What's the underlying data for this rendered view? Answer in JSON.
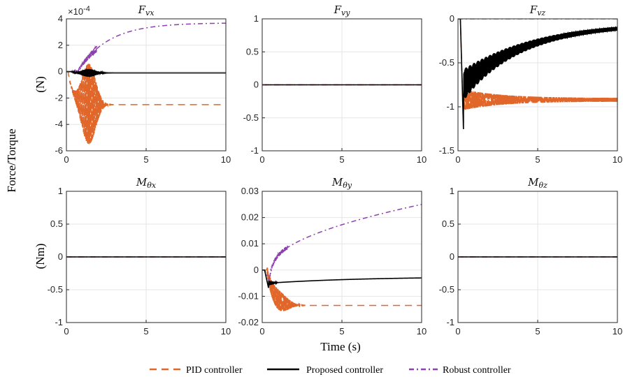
{
  "colors": {
    "pid": "#E0662A",
    "proposed": "#000000",
    "robust": "#8E3FB0",
    "grid": "#E6E6E6",
    "axis": "#262626"
  },
  "figure": {
    "ylabel": "Force/Torque",
    "xlabel": "Time (s)",
    "row_labels": [
      "(N)",
      "(Nm)"
    ]
  },
  "legend": [
    {
      "name": "PID controller",
      "style": "dashed",
      "color_key": "pid"
    },
    {
      "name": "Proposed controller",
      "style": "solid",
      "color_key": "proposed"
    },
    {
      "name": "Robust controller",
      "style": "dashdot",
      "color_key": "robust"
    }
  ],
  "chart_data": [
    {
      "type": "line",
      "title_main": "F",
      "title_sub": "vx",
      "exponent": "×10-4",
      "xlim": [
        0,
        10
      ],
      "ylim": [
        -6,
        4
      ],
      "xticks": [
        "0",
        "5",
        "10"
      ],
      "yticks": [
        "-6",
        "-4",
        "-2",
        "0",
        "2",
        "4"
      ],
      "ytick_values": [
        -6,
        -4,
        -2,
        0,
        2,
        4
      ],
      "series": [
        {
          "name": "PID controller",
          "model": {
            "kind": "osc",
            "final": -2.5,
            "amp": 3.2,
            "freq": 28,
            "start": 0.1,
            "peak": 1.4,
            "width": 0.6,
            "decay": 3
          }
        },
        {
          "name": "Proposed controller",
          "model": {
            "kind": "osc",
            "final": -0.1,
            "amp": 0.3,
            "freq": 32,
            "start": 0.3,
            "peak": 1.4,
            "width": 0.6,
            "decay": 4
          }
        },
        {
          "name": "Robust controller",
          "model": {
            "kind": "rise",
            "final": 3.7,
            "tau": 1.9,
            "start": 0.3,
            "osc": 0.25,
            "freq": 26,
            "osc_end": 1.9
          }
        }
      ]
    },
    {
      "type": "line",
      "title_main": "F",
      "title_sub": "vy",
      "exponent": "",
      "xlim": [
        0,
        10
      ],
      "ylim": [
        -1,
        1
      ],
      "xticks": [
        "0",
        "5",
        "10"
      ],
      "yticks": [
        "-1",
        "-0.5",
        "0",
        "0.5",
        "1"
      ],
      "ytick_values": [
        -1,
        -0.5,
        0,
        0.5,
        1
      ],
      "series": [
        {
          "name": "PID controller",
          "model": {
            "kind": "const",
            "final": 0
          }
        },
        {
          "name": "Proposed controller",
          "model": {
            "kind": "const",
            "final": 0
          }
        },
        {
          "name": "Robust controller",
          "model": {
            "kind": "const",
            "final": 0
          }
        }
      ]
    },
    {
      "type": "line",
      "title_main": "F",
      "title_sub": "vz",
      "exponent": "",
      "xlim": [
        0,
        10
      ],
      "ylim": [
        -1.5,
        0
      ],
      "xticks": [
        "0",
        "5",
        "10"
      ],
      "yticks": [
        "-1.5",
        "-1",
        "-0.5",
        "0"
      ],
      "ytick_values": [
        -1.5,
        -1,
        -0.5,
        0
      ],
      "series": [
        {
          "name": "PID controller",
          "model": {
            "kind": "band",
            "final": -0.92,
            "amp0": 0.12,
            "amp1": 0.02,
            "freq": 30,
            "start": 0.15,
            "dip": -1.3,
            "dip_t": 0.35
          }
        },
        {
          "name": "Proposed controller",
          "model": {
            "kind": "band",
            "final": -0.05,
            "amp0": 0.18,
            "amp1": 0.02,
            "freq": 36,
            "start": 0.15,
            "dip": -1.3,
            "dip_t": 0.35,
            "decay_to_final": true,
            "tau": 4.0,
            "mid": -0.75
          }
        },
        {
          "name": "Robust controller",
          "model": {
            "kind": "const",
            "final": 0
          }
        }
      ]
    },
    {
      "type": "line",
      "title_main": "M",
      "title_sub": "θx",
      "exponent": "",
      "xlim": [
        0,
        10
      ],
      "ylim": [
        -1,
        1
      ],
      "xticks": [
        "0",
        "5",
        "10"
      ],
      "yticks": [
        "-1",
        "-0.5",
        "0",
        "0.5",
        "1"
      ],
      "ytick_values": [
        -1,
        -0.5,
        0,
        0.5,
        1
      ],
      "series": [
        {
          "name": "PID controller",
          "model": {
            "kind": "const",
            "final": 0
          }
        },
        {
          "name": "Proposed controller",
          "model": {
            "kind": "const",
            "final": 0
          }
        },
        {
          "name": "Robust controller",
          "model": {
            "kind": "const",
            "final": 0
          }
        }
      ]
    },
    {
      "type": "line",
      "title_main": "M",
      "title_sub": "θy",
      "exponent": "",
      "xlim": [
        0,
        10
      ],
      "ylim": [
        -0.02,
        0.03
      ],
      "xticks": [
        "0",
        "5",
        "10"
      ],
      "yticks": [
        "-0.02",
        "-0.01",
        "0",
        "0.01",
        "0.02",
        "0.03"
      ],
      "ytick_values": [
        -0.02,
        -0.01,
        0,
        0.01,
        0.02,
        0.03
      ],
      "series": [
        {
          "name": "PID controller",
          "model": {
            "kind": "osc",
            "final": -0.0135,
            "amp": 0.004,
            "freq": 28,
            "start": 0.3,
            "peak": 1.0,
            "width": 0.8,
            "decay": 2.5
          }
        },
        {
          "name": "Proposed controller",
          "model": {
            "kind": "settle",
            "v0": -0.005,
            "final": -0.0025,
            "tau": 6,
            "start": 0.15,
            "dip": -0.007,
            "osc": 0.0015,
            "freq": 30,
            "osc_end": 1.0
          }
        },
        {
          "name": "Robust controller",
          "model": {
            "kind": "sqrt",
            "final": 0.025,
            "start": 0.15,
            "dip": -0.004,
            "osc": 0.0007,
            "freq": 26,
            "osc_end": 1.6
          }
        }
      ]
    },
    {
      "type": "line",
      "title_main": "M",
      "title_sub": "θz",
      "exponent": "",
      "xlim": [
        0,
        10
      ],
      "ylim": [
        -1,
        1
      ],
      "xticks": [
        "0",
        "5",
        "10"
      ],
      "yticks": [
        "-1",
        "-0.5",
        "0",
        "0.5",
        "1"
      ],
      "ytick_values": [
        -1,
        -0.5,
        0,
        0.5,
        1
      ],
      "series": [
        {
          "name": "PID controller",
          "model": {
            "kind": "const",
            "final": 0
          }
        },
        {
          "name": "Proposed controller",
          "model": {
            "kind": "const",
            "final": 0
          }
        },
        {
          "name": "Robust controller",
          "model": {
            "kind": "const",
            "final": 0
          }
        }
      ]
    }
  ]
}
